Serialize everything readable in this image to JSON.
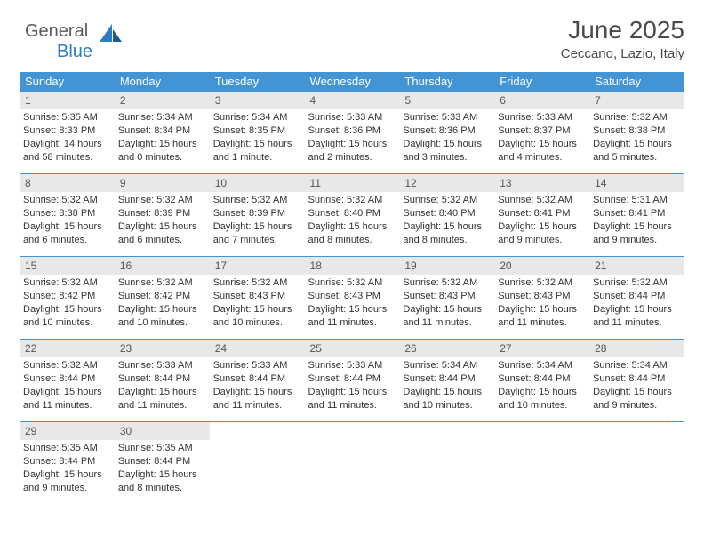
{
  "brand": {
    "line1": "General",
    "line2": "Blue"
  },
  "colors": {
    "header_bg": "#4394d4",
    "header_text": "#ffffff",
    "daynum_bg": "#e8e8e8",
    "daynum_text": "#555555",
    "text": "#333333",
    "rule": "#4394d4",
    "brand_gray": "#5a5a5a",
    "brand_blue": "#2d7dc4",
    "page_bg": "#ffffff"
  },
  "title": "June 2025",
  "location": "Ceccano, Lazio, Italy",
  "weekdays": [
    "Sunday",
    "Monday",
    "Tuesday",
    "Wednesday",
    "Thursday",
    "Friday",
    "Saturday"
  ],
  "days": [
    {
      "n": "1",
      "sr": "5:35 AM",
      "ss": "8:33 PM",
      "dl": "14 hours and 58 minutes."
    },
    {
      "n": "2",
      "sr": "5:34 AM",
      "ss": "8:34 PM",
      "dl": "15 hours and 0 minutes."
    },
    {
      "n": "3",
      "sr": "5:34 AM",
      "ss": "8:35 PM",
      "dl": "15 hours and 1 minute."
    },
    {
      "n": "4",
      "sr": "5:33 AM",
      "ss": "8:36 PM",
      "dl": "15 hours and 2 minutes."
    },
    {
      "n": "5",
      "sr": "5:33 AM",
      "ss": "8:36 PM",
      "dl": "15 hours and 3 minutes."
    },
    {
      "n": "6",
      "sr": "5:33 AM",
      "ss": "8:37 PM",
      "dl": "15 hours and 4 minutes."
    },
    {
      "n": "7",
      "sr": "5:32 AM",
      "ss": "8:38 PM",
      "dl": "15 hours and 5 minutes."
    },
    {
      "n": "8",
      "sr": "5:32 AM",
      "ss": "8:38 PM",
      "dl": "15 hours and 6 minutes."
    },
    {
      "n": "9",
      "sr": "5:32 AM",
      "ss": "8:39 PM",
      "dl": "15 hours and 6 minutes."
    },
    {
      "n": "10",
      "sr": "5:32 AM",
      "ss": "8:39 PM",
      "dl": "15 hours and 7 minutes."
    },
    {
      "n": "11",
      "sr": "5:32 AM",
      "ss": "8:40 PM",
      "dl": "15 hours and 8 minutes."
    },
    {
      "n": "12",
      "sr": "5:32 AM",
      "ss": "8:40 PM",
      "dl": "15 hours and 8 minutes."
    },
    {
      "n": "13",
      "sr": "5:32 AM",
      "ss": "8:41 PM",
      "dl": "15 hours and 9 minutes."
    },
    {
      "n": "14",
      "sr": "5:31 AM",
      "ss": "8:41 PM",
      "dl": "15 hours and 9 minutes."
    },
    {
      "n": "15",
      "sr": "5:32 AM",
      "ss": "8:42 PM",
      "dl": "15 hours and 10 minutes."
    },
    {
      "n": "16",
      "sr": "5:32 AM",
      "ss": "8:42 PM",
      "dl": "15 hours and 10 minutes."
    },
    {
      "n": "17",
      "sr": "5:32 AM",
      "ss": "8:43 PM",
      "dl": "15 hours and 10 minutes."
    },
    {
      "n": "18",
      "sr": "5:32 AM",
      "ss": "8:43 PM",
      "dl": "15 hours and 11 minutes."
    },
    {
      "n": "19",
      "sr": "5:32 AM",
      "ss": "8:43 PM",
      "dl": "15 hours and 11 minutes."
    },
    {
      "n": "20",
      "sr": "5:32 AM",
      "ss": "8:43 PM",
      "dl": "15 hours and 11 minutes."
    },
    {
      "n": "21",
      "sr": "5:32 AM",
      "ss": "8:44 PM",
      "dl": "15 hours and 11 minutes."
    },
    {
      "n": "22",
      "sr": "5:32 AM",
      "ss": "8:44 PM",
      "dl": "15 hours and 11 minutes."
    },
    {
      "n": "23",
      "sr": "5:33 AM",
      "ss": "8:44 PM",
      "dl": "15 hours and 11 minutes."
    },
    {
      "n": "24",
      "sr": "5:33 AM",
      "ss": "8:44 PM",
      "dl": "15 hours and 11 minutes."
    },
    {
      "n": "25",
      "sr": "5:33 AM",
      "ss": "8:44 PM",
      "dl": "15 hours and 11 minutes."
    },
    {
      "n": "26",
      "sr": "5:34 AM",
      "ss": "8:44 PM",
      "dl": "15 hours and 10 minutes."
    },
    {
      "n": "27",
      "sr": "5:34 AM",
      "ss": "8:44 PM",
      "dl": "15 hours and 10 minutes."
    },
    {
      "n": "28",
      "sr": "5:34 AM",
      "ss": "8:44 PM",
      "dl": "15 hours and 9 minutes."
    },
    {
      "n": "29",
      "sr": "5:35 AM",
      "ss": "8:44 PM",
      "dl": "15 hours and 9 minutes."
    },
    {
      "n": "30",
      "sr": "5:35 AM",
      "ss": "8:44 PM",
      "dl": "15 hours and 8 minutes."
    }
  ],
  "labels": {
    "sunrise": "Sunrise:",
    "sunset": "Sunset:",
    "daylight": "Daylight:"
  },
  "layout": {
    "start_weekday": 0,
    "total_cells": 35
  }
}
